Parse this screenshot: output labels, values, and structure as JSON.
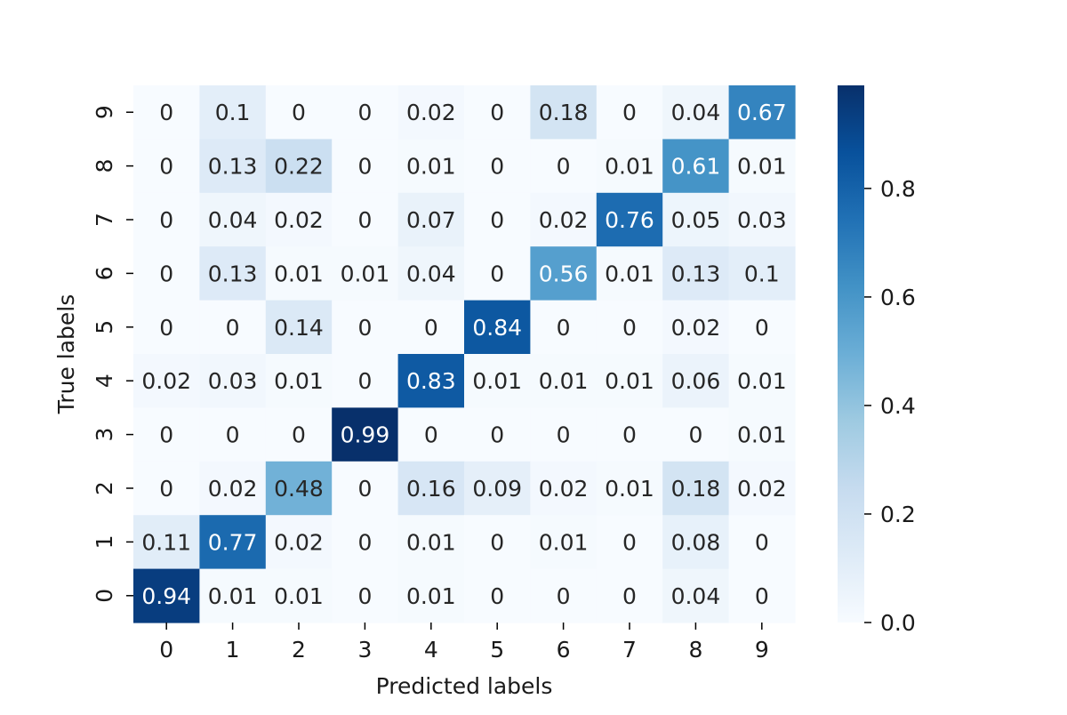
{
  "chart_data": {
    "type": "heatmap",
    "title": "",
    "xlabel": "Predicted labels",
    "ylabel": "True labels",
    "x_categories": [
      "0",
      "1",
      "2",
      "3",
      "4",
      "5",
      "6",
      "7",
      "8",
      "9"
    ],
    "y_categories": [
      "9",
      "8",
      "7",
      "6",
      "5",
      "4",
      "3",
      "2",
      "1",
      "0"
    ],
    "values": [
      [
        "0",
        "0.1",
        "0",
        "0",
        "0.02",
        "0",
        "0.18",
        "0",
        "0.04",
        "0.67"
      ],
      [
        "0",
        "0.13",
        "0.22",
        "0",
        "0.01",
        "0",
        "0",
        "0.01",
        "0.61",
        "0.01"
      ],
      [
        "0",
        "0.04",
        "0.02",
        "0",
        "0.07",
        "0",
        "0.02",
        "0.76",
        "0.05",
        "0.03"
      ],
      [
        "0",
        "0.13",
        "0.01",
        "0.01",
        "0.04",
        "0",
        "0.56",
        "0.01",
        "0.13",
        "0.1"
      ],
      [
        "0",
        "0",
        "0.14",
        "0",
        "0",
        "0.84",
        "0",
        "0",
        "0.02",
        "0"
      ],
      [
        "0.02",
        "0.03",
        "0.01",
        "0",
        "0.83",
        "0.01",
        "0.01",
        "0.01",
        "0.06",
        "0.01"
      ],
      [
        "0",
        "0",
        "0",
        "0.99",
        "0",
        "0",
        "0",
        "0",
        "0",
        "0.01"
      ],
      [
        "0",
        "0.02",
        "0.48",
        "0",
        "0.16",
        "0.09",
        "0.02",
        "0.01",
        "0.18",
        "0.02"
      ],
      [
        "0.11",
        "0.77",
        "0.02",
        "0",
        "0.01",
        "0",
        "0.01",
        "0",
        "0.08",
        "0"
      ],
      [
        "0.94",
        "0.01",
        "0.01",
        "0",
        "0.01",
        "0",
        "0",
        "0",
        "0.04",
        "0"
      ]
    ],
    "colormap": "Blues",
    "vmin": 0.0,
    "vmax": 0.99,
    "colorbar": {
      "ticks": [
        0.0,
        0.2,
        0.4,
        0.6,
        0.8
      ],
      "tick_labels": [
        "0.0",
        "0.2",
        "0.4",
        "0.6",
        "0.8"
      ]
    }
  }
}
